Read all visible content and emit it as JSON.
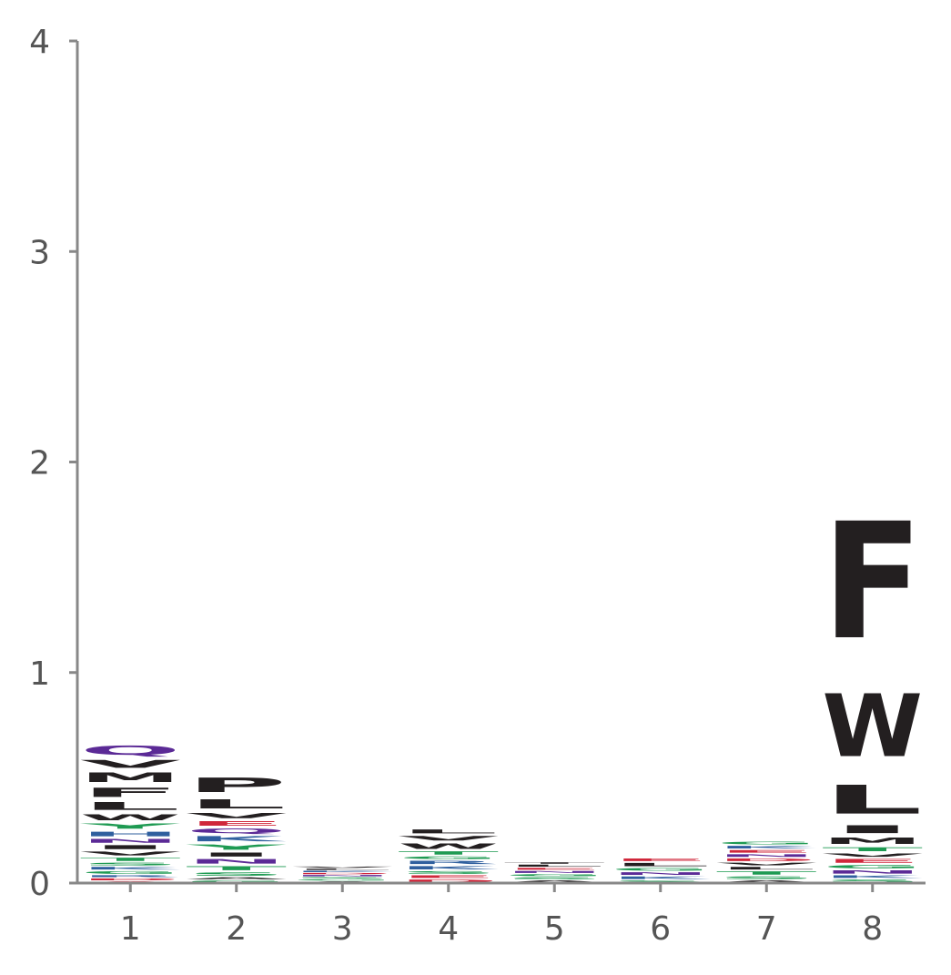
{
  "chart_data": {
    "type": "sequence-logo",
    "title": "",
    "xlabel": "",
    "ylabel": "",
    "ylim": [
      0,
      4
    ],
    "yticks": [
      "0",
      "1",
      "2",
      "3",
      "4"
    ],
    "categories": [
      "1",
      "2",
      "3",
      "4",
      "5",
      "6",
      "7",
      "8"
    ],
    "grid": false,
    "colors": {
      "black": "#231f20",
      "purple": "#5b2a96",
      "green": "#1e9a52",
      "blue": "#2f5f9e",
      "red": "#d0273b",
      "axis": "#888888"
    },
    "positions": [
      {
        "position": "1",
        "letters": [
          {
            "char": "A",
            "height": 0.01,
            "color": "red"
          },
          {
            "char": "D",
            "height": 0.015,
            "color": "red"
          },
          {
            "char": "R",
            "height": 0.015,
            "color": "blue"
          },
          {
            "char": "G",
            "height": 0.02,
            "color": "green"
          },
          {
            "char": "K",
            "height": 0.02,
            "color": "blue"
          },
          {
            "char": "S",
            "height": 0.02,
            "color": "green"
          },
          {
            "char": "T",
            "height": 0.025,
            "color": "green"
          },
          {
            "char": "V",
            "height": 0.03,
            "color": "black"
          },
          {
            "char": "I",
            "height": 0.03,
            "color": "black"
          },
          {
            "char": "N",
            "height": 0.03,
            "color": "purple"
          },
          {
            "char": "H",
            "height": 0.035,
            "color": "blue"
          },
          {
            "char": "Y",
            "height": 0.04,
            "color": "green"
          },
          {
            "char": "W",
            "height": 0.045,
            "color": "black"
          },
          {
            "char": "L",
            "height": 0.06,
            "color": "black"
          },
          {
            "char": "F",
            "height": 0.07,
            "color": "black"
          },
          {
            "char": "M",
            "height": 0.07,
            "color": "black"
          },
          {
            "char": "V",
            "height": 0.06,
            "color": "black"
          },
          {
            "char": "Q",
            "height": 0.07,
            "color": "purple"
          }
        ]
      },
      {
        "position": "2",
        "letters": [
          {
            "char": "G",
            "height": 0.015,
            "color": "green"
          },
          {
            "char": "A",
            "height": 0.015,
            "color": "black"
          },
          {
            "char": "S",
            "height": 0.025,
            "color": "green"
          },
          {
            "char": "T",
            "height": 0.03,
            "color": "green"
          },
          {
            "char": "N",
            "height": 0.035,
            "color": "purple"
          },
          {
            "char": "I",
            "height": 0.03,
            "color": "black"
          },
          {
            "char": "Y",
            "height": 0.04,
            "color": "green"
          },
          {
            "char": "K",
            "height": 0.04,
            "color": "blue"
          },
          {
            "char": "Q",
            "height": 0.035,
            "color": "purple"
          },
          {
            "char": "E",
            "height": 0.035,
            "color": "red"
          },
          {
            "char": "V",
            "height": 0.04,
            "color": "black"
          },
          {
            "char": "L",
            "height": 0.07,
            "color": "black"
          },
          {
            "char": "P",
            "height": 0.11,
            "color": "black"
          }
        ]
      },
      {
        "position": "3",
        "letters": [
          {
            "char": "A",
            "height": 0.01,
            "color": "black"
          },
          {
            "char": "G",
            "height": 0.01,
            "color": "green"
          },
          {
            "char": "S",
            "height": 0.01,
            "color": "green"
          },
          {
            "char": "N",
            "height": 0.01,
            "color": "purple"
          },
          {
            "char": "D",
            "height": 0.01,
            "color": "red"
          },
          {
            "char": "K",
            "height": 0.01,
            "color": "blue"
          },
          {
            "char": "L",
            "height": 0.01,
            "color": "black"
          },
          {
            "char": "V",
            "height": 0.01,
            "color": "black"
          }
        ]
      },
      {
        "position": "4",
        "letters": [
          {
            "char": "D",
            "height": 0.02,
            "color": "red"
          },
          {
            "char": "E",
            "height": 0.02,
            "color": "red"
          },
          {
            "char": "S",
            "height": 0.02,
            "color": "green"
          },
          {
            "char": "K",
            "height": 0.025,
            "color": "blue"
          },
          {
            "char": "R",
            "height": 0.025,
            "color": "blue"
          },
          {
            "char": "G",
            "height": 0.02,
            "color": "green"
          },
          {
            "char": "T",
            "height": 0.025,
            "color": "green"
          },
          {
            "char": "W",
            "height": 0.04,
            "color": "black"
          },
          {
            "char": "V",
            "height": 0.035,
            "color": "black"
          },
          {
            "char": "L",
            "height": 0.03,
            "color": "black"
          }
        ]
      },
      {
        "position": "5",
        "letters": [
          {
            "char": "A",
            "height": 0.015,
            "color": "black"
          },
          {
            "char": "S",
            "height": 0.015,
            "color": "green"
          },
          {
            "char": "G",
            "height": 0.015,
            "color": "green"
          },
          {
            "char": "N",
            "height": 0.015,
            "color": "purple"
          },
          {
            "char": "E",
            "height": 0.015,
            "color": "red"
          },
          {
            "char": "L",
            "height": 0.015,
            "color": "black"
          },
          {
            "char": "T",
            "height": 0.01,
            "color": "black"
          }
        ]
      },
      {
        "position": "6",
        "letters": [
          {
            "char": "S",
            "height": 0.015,
            "color": "green"
          },
          {
            "char": "K",
            "height": 0.02,
            "color": "blue"
          },
          {
            "char": "N",
            "height": 0.02,
            "color": "purple"
          },
          {
            "char": "G",
            "height": 0.02,
            "color": "green"
          },
          {
            "char": "L",
            "height": 0.025,
            "color": "black"
          },
          {
            "char": "E",
            "height": 0.02,
            "color": "red"
          }
        ]
      },
      {
        "position": "7",
        "letters": [
          {
            "char": "A",
            "height": 0.015,
            "color": "black"
          },
          {
            "char": "S",
            "height": 0.02,
            "color": "green"
          },
          {
            "char": "T",
            "height": 0.025,
            "color": "green"
          },
          {
            "char": "L",
            "height": 0.02,
            "color": "black"
          },
          {
            "char": "V",
            "height": 0.02,
            "color": "black"
          },
          {
            "char": "D",
            "height": 0.02,
            "color": "red"
          },
          {
            "char": "N",
            "height": 0.02,
            "color": "purple"
          },
          {
            "char": "E",
            "height": 0.02,
            "color": "red"
          },
          {
            "char": "K",
            "height": 0.02,
            "color": "blue"
          },
          {
            "char": "G",
            "height": 0.02,
            "color": "green"
          }
        ]
      },
      {
        "position": "8",
        "letters": [
          {
            "char": "S",
            "height": 0.02,
            "color": "green"
          },
          {
            "char": "K",
            "height": 0.02,
            "color": "blue"
          },
          {
            "char": "N",
            "height": 0.025,
            "color": "purple"
          },
          {
            "char": "G",
            "height": 0.025,
            "color": "green"
          },
          {
            "char": "E",
            "height": 0.03,
            "color": "red"
          },
          {
            "char": "V",
            "height": 0.025,
            "color": "black"
          },
          {
            "char": "T",
            "height": 0.03,
            "color": "green"
          },
          {
            "char": "M",
            "height": 0.05,
            "color": "black"
          },
          {
            "char": "I",
            "height": 0.06,
            "color": "black"
          },
          {
            "char": "L",
            "height": 0.22,
            "color": "black"
          },
          {
            "char": "W",
            "height": 0.48,
            "color": "black"
          },
          {
            "char": "F",
            "height": 0.89,
            "color": "black"
          }
        ]
      }
    ]
  }
}
